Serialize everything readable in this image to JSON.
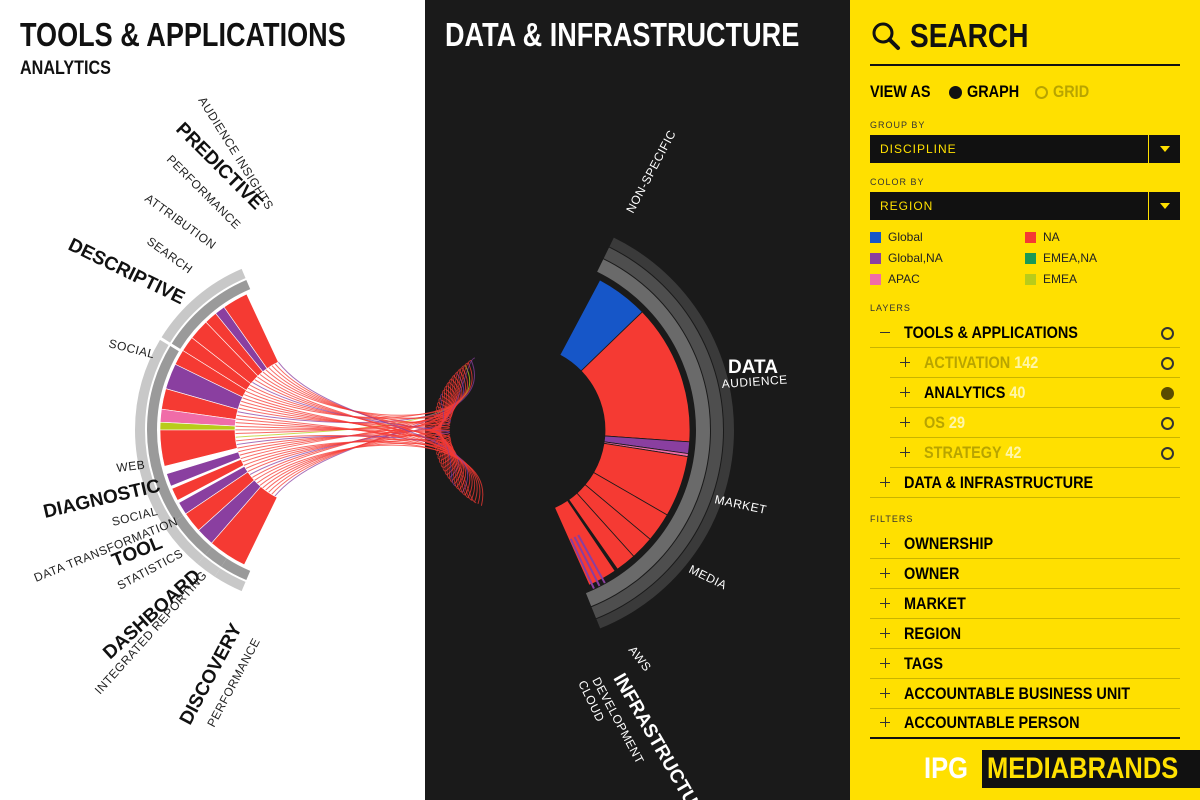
{
  "left": {
    "title": "TOOLS & APPLICATIONS",
    "subtitle": "ANALYTICS",
    "categories": [
      {
        "name": "PREDICTIVE",
        "subs": [
          "AUDIENCE INSIGHTS",
          "PERFORMANCE"
        ]
      },
      {
        "name": "DESCRIPTIVE",
        "subs": [
          "ATTRIBUTION",
          "SEARCH",
          "SOCIAL"
        ]
      },
      {
        "name": "DIAGNOSTIC",
        "subs": [
          "WEB",
          "SOCIAL"
        ]
      },
      {
        "name": "TOOL",
        "subs": [
          "DATA TRANSFORMATION",
          "STATISTICS"
        ]
      },
      {
        "name": "DASHBOARD",
        "subs": [
          "INTEGRATED REPORTING"
        ]
      },
      {
        "name": "DISCOVERY",
        "subs": [
          "PERFORMANCE"
        ]
      }
    ]
  },
  "middle": {
    "title": "DATA & INFRASTRUCTURE",
    "categories": [
      {
        "name": "DATA",
        "subs": [
          "NON-SPECIFIC",
          "AUDIENCE",
          "MARKET",
          "MEDIA"
        ]
      },
      {
        "name": "INFRASTRUCTURE",
        "subs": [
          "AWS",
          "DEVELOPMENT",
          "CLOUD"
        ]
      }
    ]
  },
  "search": {
    "title": "SEARCH",
    "view_as_label": "VIEW AS",
    "view_graph": "GRAPH",
    "view_grid": "GRID",
    "group_by_label": "GROUP BY",
    "group_by_value": "DISCIPLINE",
    "color_by_label": "COLOR BY",
    "color_by_value": "REGION",
    "legend": [
      {
        "label": "Global",
        "color": "#1656c8"
      },
      {
        "label": "NA",
        "color": "#f53a33"
      },
      {
        "label": "Global,NA",
        "color": "#8a3fa0"
      },
      {
        "label": "EMEA,NA",
        "color": "#1a9a55"
      },
      {
        "label": "APAC",
        "color": "#f06ca8"
      },
      {
        "label": "EMEA",
        "color": "#b8cc1a"
      }
    ],
    "layers_label": "LAYERS",
    "layers": {
      "tools": "TOOLS & APPLICATIONS",
      "activation": "ACTIVATION",
      "activation_count": "142",
      "analytics": "ANALYTICS",
      "analytics_count": "40",
      "os": "OS",
      "os_count": "29",
      "strategy": "STRATEGY",
      "strategy_count": "42",
      "data": "DATA & INFRASTRUCTURE"
    },
    "filters_label": "FILTERS",
    "filters": [
      "OWNERSHIP",
      "OWNER",
      "MARKET",
      "REGION",
      "TAGS",
      "ACCOUNTABLE BUSINESS UNIT",
      "ACCOUNTABLE PERSON"
    ]
  },
  "logo": {
    "ipg": "IPG",
    "mediabrands": "MEDIABRANDS"
  },
  "colors": {
    "red": "#f53a33",
    "blue": "#1656c8",
    "purple": "#8a3fa0",
    "pink": "#f06ca8",
    "lime": "#b8cc1a",
    "yellow": "#ffe000"
  }
}
